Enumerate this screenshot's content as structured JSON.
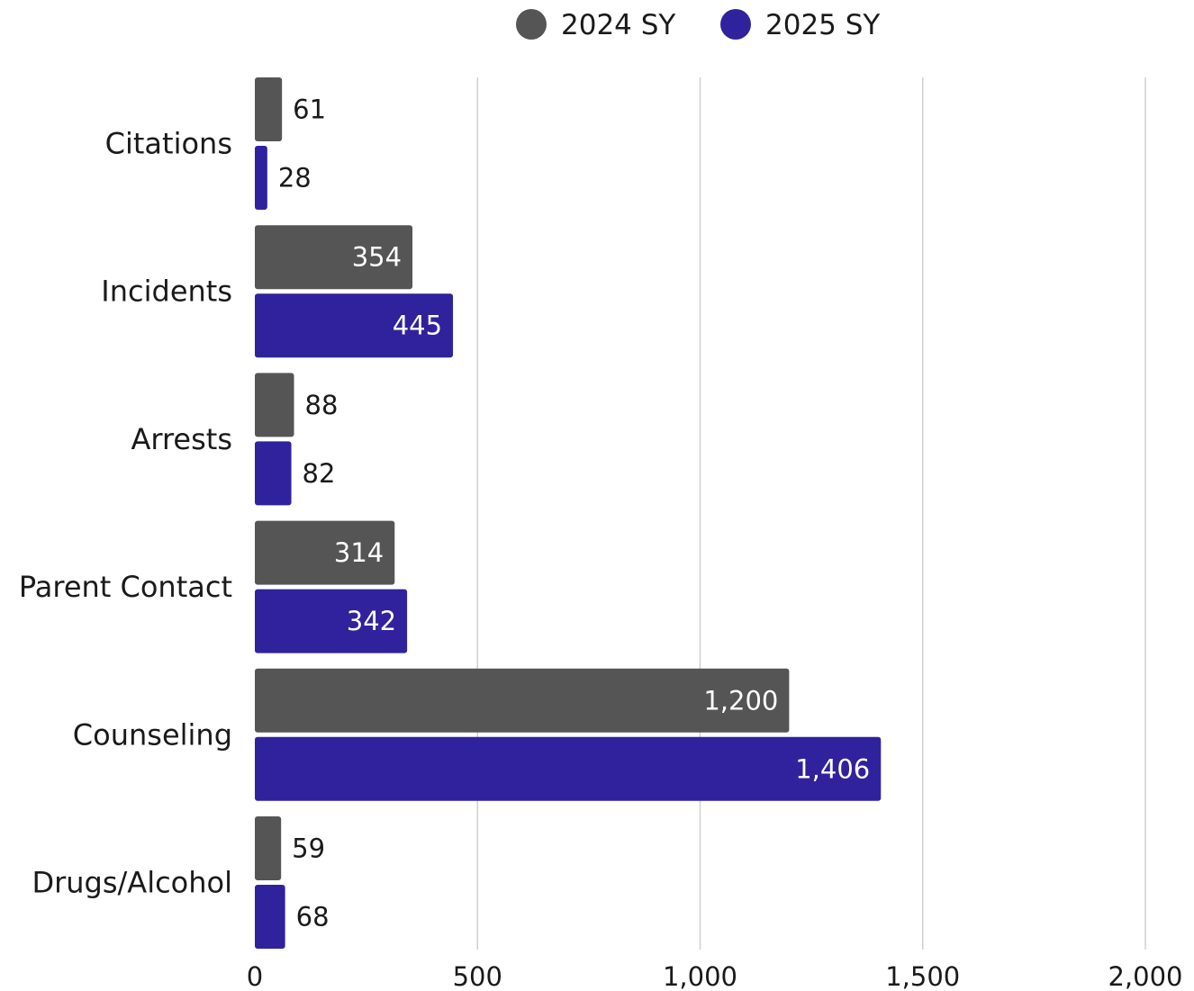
{
  "chart_data": {
    "type": "bar",
    "orientation": "horizontal",
    "categories": [
      "Citations",
      "Incidents",
      "Arrests",
      "Parent Contact",
      "Counseling",
      "Drugs/Alcohol"
    ],
    "series": [
      {
        "name": "2024 SY",
        "color": "#555555",
        "values": [
          61,
          354,
          88,
          314,
          1200,
          59
        ]
      },
      {
        "name": "2025 SY",
        "color": "#30229c",
        "values": [
          28,
          445,
          82,
          342,
          1406,
          68
        ]
      }
    ],
    "xlim": [
      0,
      2000
    ],
    "xticks": [
      0,
      500,
      1000,
      1500,
      2000
    ],
    "xtick_labels": [
      "0",
      "500",
      "1,000",
      "1,500",
      "2,000"
    ],
    "grid": "vertical",
    "legend": "top-center",
    "gridline_color": "#d0d0d0"
  }
}
